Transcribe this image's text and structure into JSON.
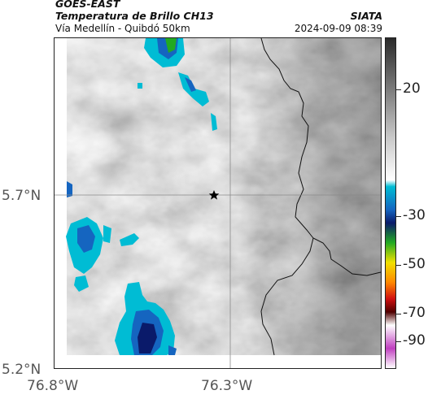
{
  "header": {
    "agency": "GOES-EAST",
    "product": "Temperatura de Brillo CH13",
    "subtitle": "Vía Medellín - Quibdó 50km",
    "brand": "SIATA",
    "timestamp": "2024-09-09 08:39"
  },
  "map": {
    "latitude_labels": [
      "5.7°N",
      "5.2°N"
    ],
    "longitude_labels": [
      "76.8°W",
      "76.3°W"
    ],
    "marker_icon": "star-icon"
  },
  "colorbar": {
    "tick_labels": [
      "20",
      "-30",
      "-50",
      "-70",
      "-90"
    ],
    "colors": {
      "warm_top": "#2a2a2a",
      "gray_mid": "#c8c8c8",
      "white": "#ffffff",
      "cyan": "#00bcd4",
      "blue": "#1565c0",
      "dark_blue": "#0a1a6a",
      "green": "#22aa22",
      "yellow": "#f0e000",
      "orange": "#ff8800",
      "red": "#d01010",
      "dark_red": "#500000",
      "magenta": "#c040c0"
    }
  }
}
